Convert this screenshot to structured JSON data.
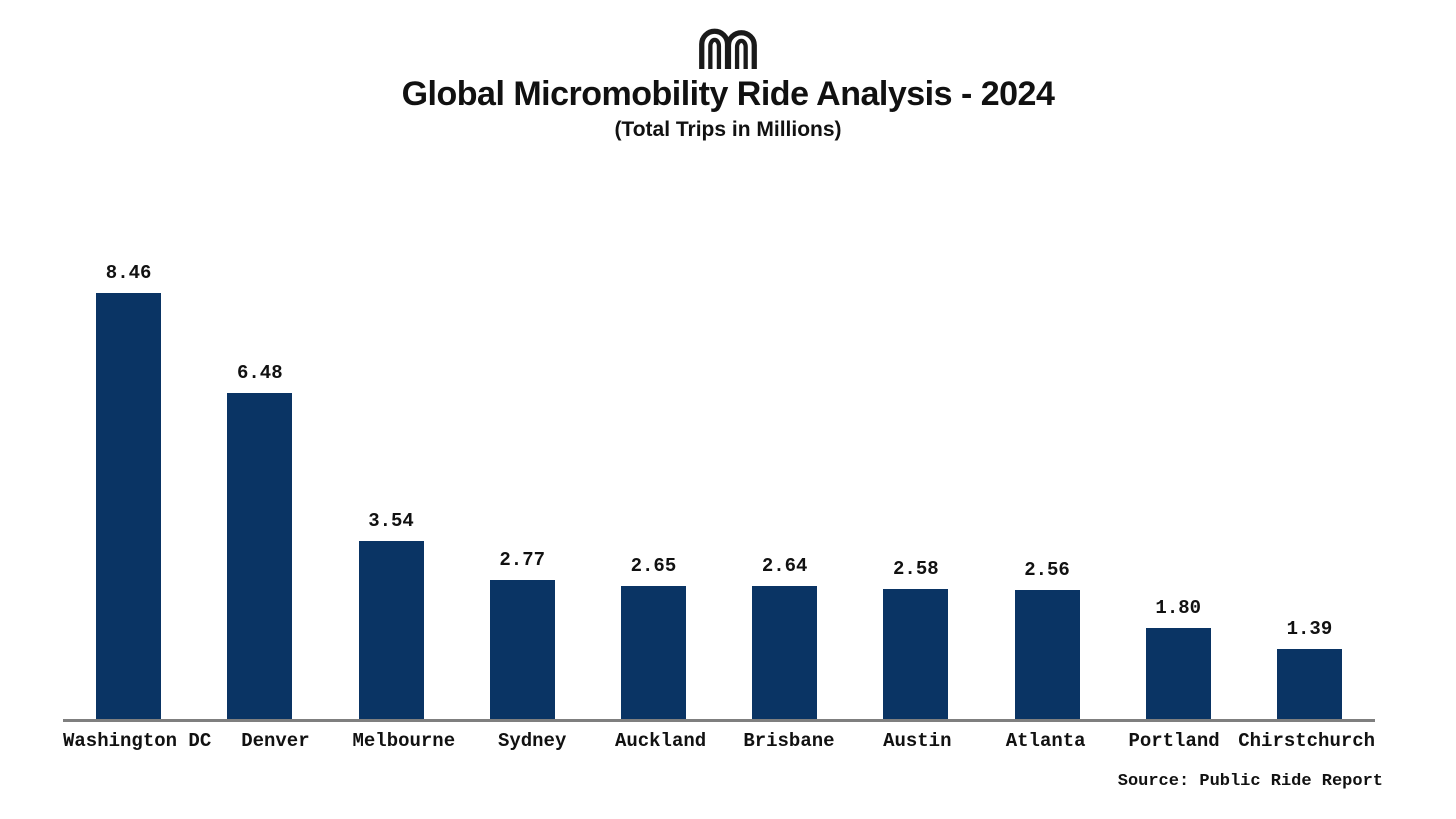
{
  "header": {
    "title": "Global Micromobility Ride Analysis - 2024",
    "subtitle": "(Total Trips in Millions)",
    "logo_icon": "double-arch-m-logo",
    "logo_color": "#1a1a1a"
  },
  "footer": {
    "source": "Source: Public Ride Report"
  },
  "chart_data": {
    "type": "bar",
    "title": "Global Micromobility Ride Analysis - 2024",
    "subtitle": "(Total Trips in Millions)",
    "categories": [
      "Washington DC",
      "Denver",
      "Melbourne",
      "Sydney",
      "Auckland",
      "Brisbane",
      "Austin",
      "Atlanta",
      "Portland",
      "Chirstchurch"
    ],
    "values": [
      8.46,
      6.48,
      3.54,
      2.77,
      2.65,
      2.64,
      2.58,
      2.56,
      1.8,
      1.39
    ],
    "value_labels": [
      "8.46",
      "6.48",
      "3.54",
      "2.77",
      "2.65",
      "2.64",
      "2.58",
      "2.56",
      "1.80",
      "1.39"
    ],
    "xlabel": "",
    "ylabel": "",
    "ylim": [
      0,
      9
    ],
    "grid": false,
    "legend": false,
    "bar_color": "#0A3464",
    "axis_color": "#7f7f7f",
    "label_color": "#111111",
    "source": "Source: Public Ride Report"
  }
}
